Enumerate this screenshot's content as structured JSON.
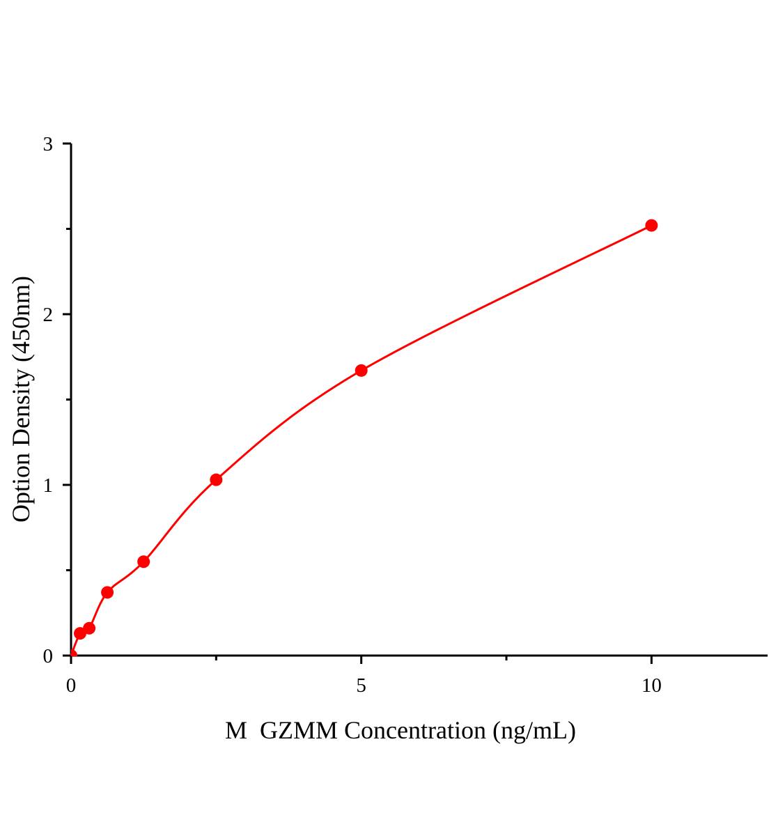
{
  "chart_data": {
    "type": "scatter",
    "title": "",
    "xlabel": "M  GZMM Concentration (ng/mL)",
    "ylabel": "Option Density (450nm)",
    "xlim": [
      0,
      12
    ],
    "ylim": [
      0,
      3
    ],
    "x_ticks": [
      0,
      5,
      10
    ],
    "x_minor_ticks": [
      2.5,
      7.5
    ],
    "y_ticks": [
      0,
      1,
      2,
      3
    ],
    "y_minor_ticks": [
      0.5,
      1.5,
      2.5
    ],
    "grid": false,
    "color": "#ff0000",
    "fit_curve": true,
    "points": [
      {
        "x": 0,
        "y": 0.0
      },
      {
        "x": 0.156,
        "y": 0.13
      },
      {
        "x": 0.313,
        "y": 0.16
      },
      {
        "x": 0.625,
        "y": 0.37
      },
      {
        "x": 1.25,
        "y": 0.55
      },
      {
        "x": 2.5,
        "y": 1.03
      },
      {
        "x": 5,
        "y": 1.67
      },
      {
        "x": 10,
        "y": 2.52
      }
    ]
  }
}
